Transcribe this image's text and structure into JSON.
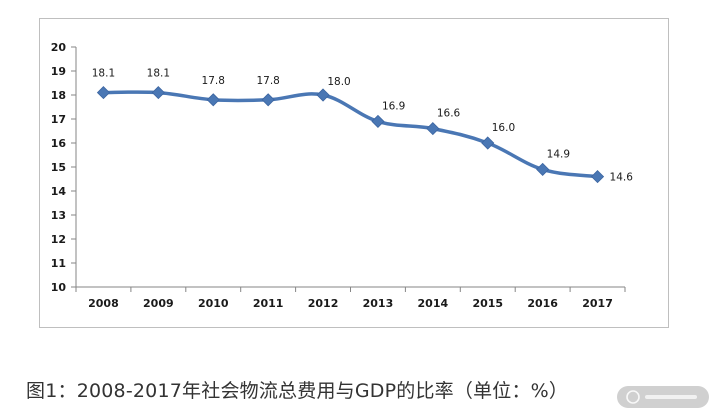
{
  "caption": "图1：2008-2017年社会物流总费用与GDP的比率（单位：%）",
  "chart_data": {
    "type": "line",
    "categories": [
      "2008",
      "2009",
      "2010",
      "2011",
      "2012",
      "2013",
      "2014",
      "2015",
      "2016",
      "2017"
    ],
    "series": [
      {
        "values": [
          18.1,
          18.1,
          17.8,
          17.8,
          18.0,
          16.9,
          16.6,
          16.0,
          14.9,
          14.6
        ],
        "labels": [
          "18.1",
          "18.1",
          "17.8",
          "17.8",
          "18.0",
          "16.9",
          "16.6",
          "16.0",
          "14.9",
          "14.6"
        ],
        "color": "#4a77b4",
        "marker": "diamond"
      }
    ],
    "ylim": [
      10,
      20
    ],
    "yticks": [
      "10",
      "11",
      "12",
      "13",
      "14",
      "15",
      "16",
      "17",
      "18",
      "19",
      "20"
    ],
    "grid": false,
    "legend": "none"
  }
}
